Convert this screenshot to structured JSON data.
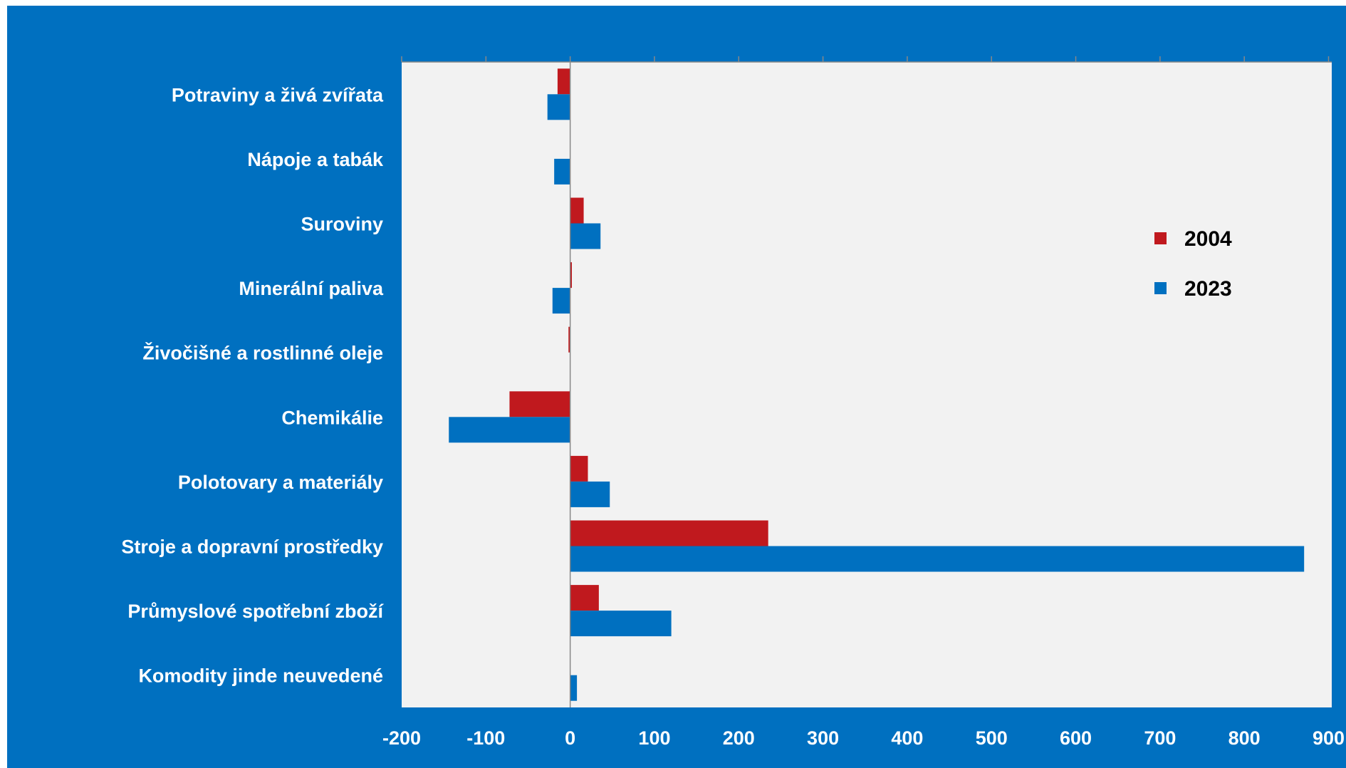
{
  "chart_data": {
    "type": "bar",
    "orientation": "horizontal",
    "categories": [
      "Potraviny a živá zvířata",
      "Nápoje a tabák",
      "Suroviny",
      "Minerální paliva",
      "Živočišné a rostlinné oleje",
      "Chemikálie ",
      "Polotovary a materiály",
      "Stroje a dopravní prostředky",
      "Průmyslové spotřební zboží",
      "Komodity jinde neuvedené"
    ],
    "series": [
      {
        "name": "2004",
        "color": "#c0191e",
        "values": [
          -15,
          0,
          16,
          2,
          -2,
          -72,
          21,
          235,
          34,
          0
        ]
      },
      {
        "name": "2023",
        "color": "#0070c0",
        "values": [
          -27,
          -19,
          36,
          -21,
          0,
          -144,
          47,
          871,
          120,
          8
        ]
      }
    ],
    "xlim": [
      -200,
      900
    ],
    "xticks": [
      "-200",
      "-100",
      "0",
      "100",
      "200",
      "300",
      "400",
      "500",
      "600",
      "700",
      "800",
      "900"
    ],
    "title": "",
    "xlabel": "",
    "ylabel": "",
    "legend_position": "right",
    "grid": false,
    "plot_background": "#f2f2f2",
    "frame_background": "#0070c0"
  }
}
